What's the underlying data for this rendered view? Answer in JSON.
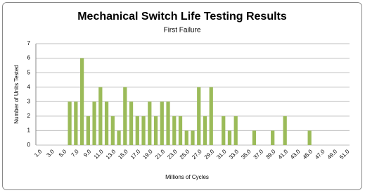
{
  "chart_data": {
    "type": "bar",
    "title": "Mechanical Switch Life Testing Results",
    "subtitle": "First Failure",
    "x_label": "Millions of Cycles",
    "y_label": "Number of Units Tested",
    "categories": [
      "1.0",
      null,
      "3.0",
      null,
      "5.0",
      null,
      "7.0",
      null,
      "9.0",
      null,
      "11.0",
      null,
      "13.0",
      null,
      "15.0",
      null,
      "17.0",
      null,
      "19.0",
      null,
      "21.0",
      null,
      "23.0",
      null,
      "25.0",
      null,
      "27.0",
      null,
      "29.0",
      null,
      "31.0",
      null,
      "33.0",
      null,
      "35.0",
      null,
      "37.0",
      null,
      "39.0",
      null,
      "41.0",
      null,
      "43.0",
      null,
      "45.0",
      null,
      "47.0",
      null,
      "49.0",
      null,
      "51.0"
    ],
    "values": [
      0,
      0,
      0,
      0,
      0,
      3,
      3,
      6,
      2,
      3,
      4,
      3,
      2,
      1,
      4,
      3,
      2,
      2,
      3,
      2,
      3,
      3,
      2,
      2,
      1,
      1,
      4,
      2,
      4,
      0,
      2,
      1,
      2,
      0,
      0,
      1,
      0,
      0,
      1,
      0,
      2,
      0,
      0,
      0,
      1,
      0,
      0,
      0,
      0,
      0,
      0
    ],
    "color": "#9bbb59",
    "ylim": [
      0,
      7
    ],
    "yticks": [
      0,
      1,
      2,
      3,
      4,
      5,
      6,
      7
    ],
    "grid": true
  }
}
